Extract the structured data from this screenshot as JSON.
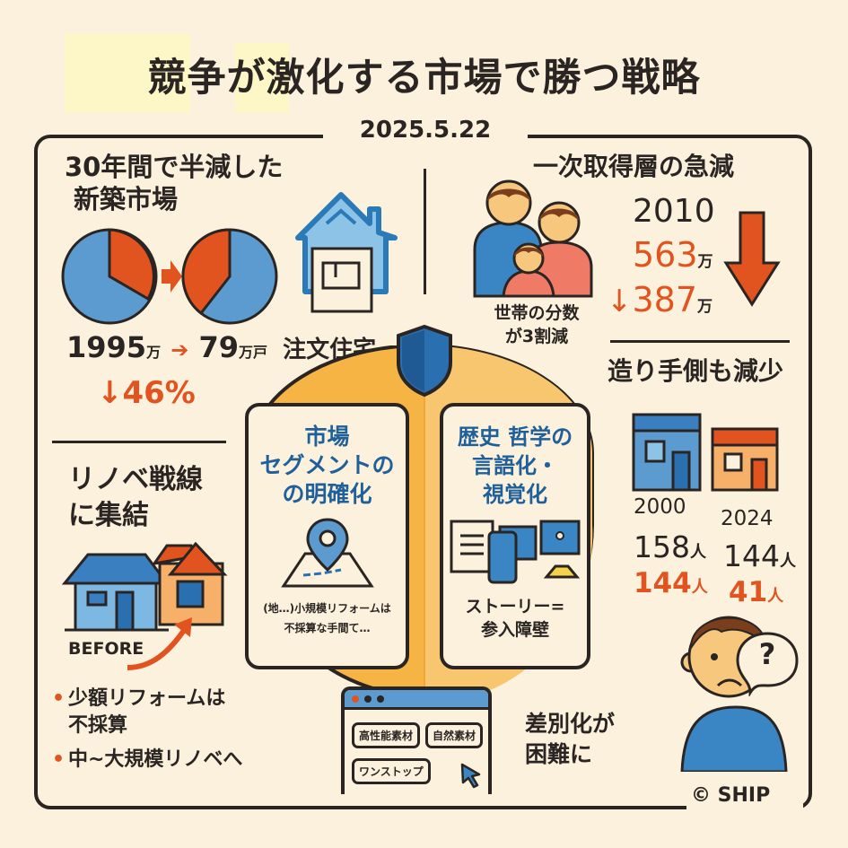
{
  "header": {
    "title": "競争が激化する市場で勝つ戦略",
    "date": "2025.5.22"
  },
  "new_build": {
    "title_line1": "30年間で半減した",
    "title_line2": "新築市場",
    "from_value": "1995",
    "from_unit": "万",
    "to_value": "79",
    "to_unit": "万戸",
    "category": "注文住宅",
    "change": "↓46%"
  },
  "renovation": {
    "title_line1": "リノベ戦線",
    "title_line2": "に集結",
    "before_label": "BEFORE",
    "bullets": [
      "少額リフォームは\n不採算",
      "中~大規模リノベへ"
    ]
  },
  "center": {
    "left_card": {
      "title": [
        "市場",
        "セグメントの",
        "の明確化"
      ],
      "caption": [
        "(地…)小規模リフォームは",
        "不採算な手間て…"
      ]
    },
    "right_card": {
      "title": [
        "歴史 哲学の",
        "言語化・",
        "視覚化"
      ],
      "caption": [
        "ストーリー=",
        "参入障壁"
      ]
    },
    "browser_tags": [
      "高性能素材",
      "自然素材",
      "ワンストップ"
    ]
  },
  "first_buyers": {
    "title": "一次取得層の急減",
    "caption_line1": "世帯の分数",
    "caption_line2": "が3割減",
    "year": "2010",
    "value_2010": "563",
    "value_now": "387",
    "unit": "万",
    "down_arrow": "↓"
  },
  "builders": {
    "title": "造り手側も減少",
    "years": [
      "2000",
      "2024"
    ],
    "row1": [
      {
        "value": "158",
        "unit": "人"
      },
      {
        "value": "144",
        "unit": "人"
      }
    ],
    "row2": [
      {
        "value": "144",
        "unit": "人"
      },
      {
        "value": "41",
        "unit": "人"
      }
    ],
    "caption_line1": "差別化が",
    "caption_line2": "困難に",
    "bubble": "?"
  },
  "footer": {
    "copyright": "© SHIP"
  },
  "colors": {
    "background": "#fbf1dc",
    "blue": "#4a8fc6",
    "orange": "#e2541f",
    "yellow": "#f6b445",
    "ink": "#2a2522"
  }
}
